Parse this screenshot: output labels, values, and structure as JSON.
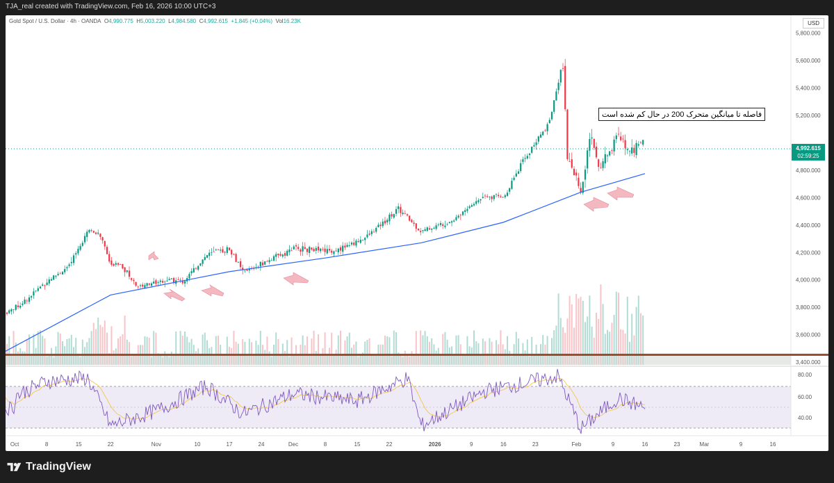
{
  "header": {
    "text": "TJA_real created with TradingView.com, Feb 16, 2026 10:00 UTC+3"
  },
  "legend": {
    "symbol": "Gold Spot / U.S. Dollar · 4h · OANDA",
    "open_label": "O",
    "open": "4,990.775",
    "high_label": "H",
    "high": "5,003.220",
    "low_label": "L",
    "low": "4,984.580",
    "close_label": "C",
    "close": "4,992.615",
    "change": "+1.845 (+0.04%)",
    "vol_label": "Vol",
    "vol": "16.23K"
  },
  "currency": "USD",
  "price_tag": {
    "price": "4,992.615",
    "countdown": "02:59:25"
  },
  "annotation": "فاصله تا میانگین متحرک 200 در حال کم شده است",
  "price_axis": [
    "5,800.000",
    "5,600.000",
    "5,400.000",
    "5,200.000",
    "4,800.000",
    "4,600.000",
    "4,400.000",
    "4,200.000",
    "4,000.000",
    "3,800.000",
    "3,600.000",
    "3,400.000"
  ],
  "rsi_axis": [
    "80.00",
    "60.00",
    "40.00"
  ],
  "time_axis": [
    "Oct",
    "8",
    "15",
    "22",
    "Nov",
    "10",
    "17",
    "24",
    "Dec",
    "8",
    "15",
    "22",
    "2026",
    "9",
    "16",
    "23",
    "Feb",
    "9",
    "16",
    "23",
    "Mar",
    "9",
    "16"
  ],
  "footer": {
    "brand": "TradingView"
  },
  "chart_data": {
    "type": "line",
    "symbol": "XAUUSD",
    "price_series_close": [
      {
        "x": "Sep 29",
        "y": 3760
      },
      {
        "x": "Oct 3",
        "y": 3840
      },
      {
        "x": "Oct 8",
        "y": 3990
      },
      {
        "x": "Oct 13",
        "y": 4100
      },
      {
        "x": "Oct 17",
        "y": 4370
      },
      {
        "x": "Oct 20",
        "y": 4320
      },
      {
        "x": "Oct 22",
        "y": 4100
      },
      {
        "x": "Oct 24",
        "y": 4120
      },
      {
        "x": "Oct 28",
        "y": 3950
      },
      {
        "x": "Nov 3",
        "y": 4000
      },
      {
        "x": "Nov 7",
        "y": 3990
      },
      {
        "x": "Nov 12",
        "y": 4180
      },
      {
        "x": "Nov 17",
        "y": 4230
      },
      {
        "x": "Nov 20",
        "y": 4050
      },
      {
        "x": "Nov 25",
        "y": 4130
      },
      {
        "x": "Dec 1",
        "y": 4230
      },
      {
        "x": "Dec 10",
        "y": 4210
      },
      {
        "x": "Dec 17",
        "y": 4310
      },
      {
        "x": "Dec 24",
        "y": 4520
      },
      {
        "x": "Dec 29",
        "y": 4350
      },
      {
        "x": "Jan 5",
        "y": 4440
      },
      {
        "x": "Jan 12",
        "y": 4620
      },
      {
        "x": "Jan 16",
        "y": 4600
      },
      {
        "x": "Jan 20",
        "y": 4850
      },
      {
        "x": "Jan 26",
        "y": 5150
      },
      {
        "x": "Jan 29",
        "y": 5580
      },
      {
        "x": "Jan 30",
        "y": 4900
      },
      {
        "x": "Feb 2",
        "y": 4650
      },
      {
        "x": "Feb 4",
        "y": 5050
      },
      {
        "x": "Feb 6",
        "y": 4800
      },
      {
        "x": "Feb 10",
        "y": 5050
      },
      {
        "x": "Feb 13",
        "y": 4950
      },
      {
        "x": "Feb 16",
        "y": 4992.615
      }
    ],
    "ma200": [
      {
        "x": "Sep 29",
        "y": 3480
      },
      {
        "x": "Oct 22",
        "y": 3890
      },
      {
        "x": "Nov 17",
        "y": 4060
      },
      {
        "x": "Dec 8",
        "y": 4160
      },
      {
        "x": "Dec 29",
        "y": 4270
      },
      {
        "x": "Jan 16",
        "y": 4420
      },
      {
        "x": "Feb 2",
        "y": 4640
      },
      {
        "x": "Feb 16",
        "y": 4775
      }
    ],
    "rsi": [
      {
        "x": "Oct 1",
        "y": 60
      },
      {
        "x": "Oct 8",
        "y": 75
      },
      {
        "x": "Oct 17",
        "y": 78
      },
      {
        "x": "Oct 22",
        "y": 30
      },
      {
        "x": "Nov 1",
        "y": 45
      },
      {
        "x": "Nov 12",
        "y": 70
      },
      {
        "x": "Nov 20",
        "y": 42
      },
      {
        "x": "Dec 1",
        "y": 62
      },
      {
        "x": "Dec 15",
        "y": 55
      },
      {
        "x": "Dec 26",
        "y": 78
      },
      {
        "x": "Dec 29",
        "y": 30
      },
      {
        "x": "Jan 12",
        "y": 65
      },
      {
        "x": "Jan 28",
        "y": 80
      },
      {
        "x": "Feb 2",
        "y": 27
      },
      {
        "x": "Feb 10",
        "y": 58
      },
      {
        "x": "Feb 16",
        "y": 48
      }
    ],
    "ylim": [
      3370,
      5930
    ],
    "rsi_ylim": [
      20,
      90
    ]
  }
}
